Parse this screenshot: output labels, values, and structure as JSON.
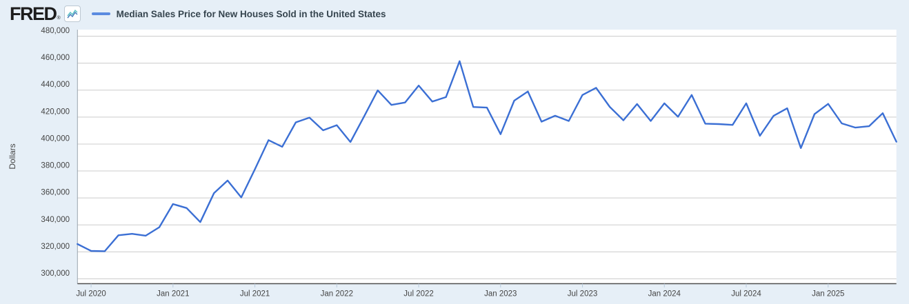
{
  "header": {
    "logo_text": "FRED",
    "registered_mark": "®",
    "legend": {
      "series_label": "Median Sales Price for New Houses Sold in the United States",
      "swatch_color": "#5b8be0"
    }
  },
  "colors": {
    "page_background": "#e6eff7",
    "plot_background": "#ffffff",
    "gridline": "#cccccc",
    "series_line": "#3b6fd4",
    "title_text": "#36454f",
    "tick_text": "#444444",
    "icon_line_teal": "#5bc2c5",
    "icon_line_blue": "#4a7ebb"
  },
  "chart_data": {
    "type": "line",
    "title": "Median Sales Price for New Houses Sold in the United States",
    "xlabel": "",
    "ylabel": "Dollars",
    "ylim": [
      300000,
      480000
    ],
    "ytick_step": 20000,
    "ytick_labels": [
      "300,000",
      "320,000",
      "340,000",
      "360,000",
      "380,000",
      "400,000",
      "420,000",
      "440,000",
      "460,000",
      "480,000"
    ],
    "grid": true,
    "legend_position": "top-left",
    "x_unit": "month",
    "x_start": "2020-06",
    "x_end": "2025-06",
    "xticks": [
      {
        "label": "Jul 2020",
        "month_index": 1
      },
      {
        "label": "Jan 2021",
        "month_index": 7
      },
      {
        "label": "Jul 2021",
        "month_index": 13
      },
      {
        "label": "Jan 2022",
        "month_index": 19
      },
      {
        "label": "Jul 2022",
        "month_index": 25
      },
      {
        "label": "Jan 2023",
        "month_index": 31
      },
      {
        "label": "Jul 2023",
        "month_index": 37
      },
      {
        "label": "Jan 2024",
        "month_index": 43
      },
      {
        "label": "Jul 2024",
        "month_index": 49
      },
      {
        "label": "Jan 2025",
        "month_index": 55
      }
    ],
    "series": [
      {
        "name": "Median Sales Price for New Houses Sold in the United States",
        "color": "#3b6fd4",
        "months": [
          "2020-06",
          "2020-07",
          "2020-08",
          "2020-09",
          "2020-10",
          "2020-11",
          "2020-12",
          "2021-01",
          "2021-02",
          "2021-03",
          "2021-04",
          "2021-05",
          "2021-06",
          "2021-07",
          "2021-08",
          "2021-09",
          "2021-10",
          "2021-11",
          "2021-12",
          "2022-01",
          "2022-02",
          "2022-03",
          "2022-04",
          "2022-05",
          "2022-06",
          "2022-07",
          "2022-08",
          "2022-09",
          "2022-10",
          "2022-11",
          "2022-12",
          "2023-01",
          "2023-02",
          "2023-03",
          "2023-04",
          "2023-05",
          "2023-06",
          "2023-07",
          "2023-08",
          "2023-09",
          "2023-10",
          "2023-11",
          "2023-12",
          "2024-01",
          "2024-02",
          "2024-03",
          "2024-04",
          "2024-05",
          "2024-06",
          "2024-07",
          "2024-08",
          "2024-09",
          "2024-10",
          "2024-11",
          "2024-12",
          "2025-01",
          "2025-02",
          "2025-03",
          "2025-04",
          "2025-05",
          "2025-06"
        ],
        "values": [
          325800,
          320700,
          320500,
          332300,
          333400,
          332000,
          338300,
          355500,
          352500,
          342100,
          363500,
          372900,
          360400,
          381300,
          402900,
          398000,
          416100,
          419600,
          410200,
          414000,
          401500,
          420500,
          439800,
          429000,
          430800,
          443400,
          431500,
          434800,
          461500,
          427500,
          427000,
          407300,
          432200,
          439000,
          416600,
          421000,
          417100,
          436400,
          441700,
          427600,
          417600,
          429700,
          417100,
          430200,
          420200,
          436400,
          415100,
          414800,
          414200,
          430200,
          406100,
          420900,
          426500,
          397000,
          422200,
          429800,
          415300,
          412200,
          413200,
          422900,
          401700
        ]
      }
    ]
  }
}
